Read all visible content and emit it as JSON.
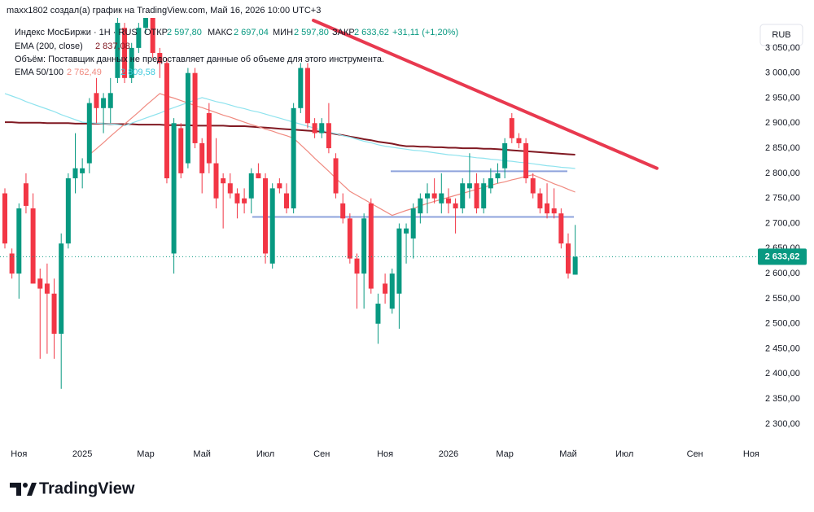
{
  "header": "maxx1802 создал(а) график на TradingView.com, Май 16, 2026 10:00 UTC+3",
  "legend": {
    "symbol": "Индекс МосБиржи · 1Н · RUS",
    "open_label": "ОТКР",
    "open": "2 597,80",
    "high_label": "МАКС",
    "high": "2 697,04",
    "low_label": "МИН",
    "low": "2 597,80",
    "close_label": "ЗАКР",
    "close": "2 633,62",
    "change": "+31,11 (+1,20%)",
    "ema200_label": "EMA (200, close)",
    "ema200": "2 837,08",
    "volume": "Объём: Поставщик данных не предоставляет данные об объеме для этого инструмента.",
    "ema_pair_label": "EMA 50/100",
    "ema50": "2 762,49",
    "ema100": "2 809,58"
  },
  "currency": "RUB",
  "logo": "TradingView",
  "chart_data": {
    "type": "candlestick",
    "categories": [
      null,
      null,
      "Ноя",
      null,
      null,
      null,
      null,
      null,
      null,
      null,
      null,
      "2025",
      null,
      null,
      null,
      null,
      null,
      null,
      null,
      null,
      "Мар",
      null,
      null,
      null,
      null,
      null,
      null,
      null,
      "Май",
      null,
      null,
      null,
      null,
      null,
      null,
      null,
      null,
      "Июл",
      null,
      null,
      null,
      null,
      null,
      null,
      null,
      "Сен",
      null,
      null,
      null,
      null,
      null,
      null,
      null,
      null,
      "Ноя",
      null,
      null,
      null,
      null,
      null,
      null,
      null,
      null,
      "2026",
      null,
      null,
      null,
      null,
      null,
      null,
      null,
      "Мар",
      null,
      null,
      null,
      null,
      null,
      null,
      null,
      null,
      "Май",
      null,
      null,
      null,
      null,
      null,
      null,
      null,
      "Июл",
      null,
      null,
      null,
      null,
      null,
      null,
      null,
      null,
      null,
      "Сен",
      null,
      null,
      null,
      null,
      null,
      null,
      null,
      "Ноя"
    ],
    "open": [
      2760,
      2640,
      2600,
      2780,
      2730,
      2590,
      2580,
      2560,
      2480,
      2660,
      2790,
      2800,
      2820,
      2960,
      2930,
      2930,
      2990,
      3090,
      2990,
      3050,
      3090,
      3110,
      3040,
      3020,
      2640,
      2890,
      2820,
      3000,
      2860,
      2920,
      2820,
      2790,
      2780,
      2760,
      2750,
      2750,
      2800,
      2790,
      2620,
      2780,
      2760,
      2730,
      2930,
      3010,
      2900,
      2880,
      2900,
      2830,
      2740,
      2710,
      2630,
      2600,
      2740,
      2500,
      2580,
      2530,
      2560,
      2680,
      2670,
      2720,
      2750,
      2760,
      2740,
      2750,
      2740,
      2730,
      2770,
      2780,
      2730,
      2770,
      2790,
      2810,
      2910,
      2870,
      2860,
      2790,
      2760,
      2740,
      2730,
      2720,
      2660,
      2597.8,
      null,
      null,
      null,
      null,
      null,
      null,
      null,
      null,
      null,
      null,
      null,
      null,
      null,
      null,
      null,
      null,
      null,
      null,
      null,
      null,
      null,
      null,
      null,
      null,
      null
    ],
    "high": [
      2770,
      2650,
      2740,
      2800,
      2760,
      2610,
      2620,
      2590,
      2680,
      2800,
      2880,
      2830,
      2950,
      2990,
      2960,
      2990,
      3110,
      3100,
      3060,
      3100,
      3120,
      3130,
      3050,
      3030,
      2910,
      2900,
      3010,
      3010,
      2870,
      2940,
      2870,
      2800,
      2800,
      2770,
      2770,
      2810,
      2820,
      2800,
      2780,
      2790,
      2780,
      2940,
      3020,
      3020,
      2910,
      2910,
      2940,
      2840,
      2760,
      2720,
      2640,
      2720,
      2750,
      2560,
      2600,
      2610,
      2700,
      2700,
      2740,
      2760,
      2780,
      2790,
      2800,
      2770,
      2750,
      2790,
      2840,
      2800,
      2790,
      2810,
      2820,
      2870,
      2920,
      2880,
      2870,
      2800,
      2770,
      2780,
      2770,
      2730,
      2680,
      2697.04,
      null,
      null,
      null,
      null,
      null,
      null,
      null,
      null,
      null,
      null,
      null,
      null,
      null,
      null,
      null,
      null,
      null,
      null,
      null,
      null,
      null,
      null,
      null,
      null,
      null
    ],
    "low": [
      2650,
      2590,
      2550,
      2720,
      2580,
      2430,
      2440,
      2430,
      2370,
      2650,
      2760,
      2770,
      2800,
      2900,
      2880,
      2900,
      2980,
      2980,
      2980,
      3040,
      3080,
      3030,
      2990,
      2780,
      2600,
      2790,
      2810,
      2850,
      2760,
      2800,
      2730,
      2690,
      2750,
      2710,
      2720,
      2720,
      2790,
      2620,
      2610,
      2760,
      2720,
      2720,
      2920,
      2890,
      2870,
      2870,
      2840,
      2750,
      2700,
      2620,
      2530,
      2530,
      2560,
      2460,
      2540,
      2520,
      2490,
      2620,
      2630,
      2700,
      2720,
      2740,
      2720,
      2720,
      2680,
      2720,
      2750,
      2720,
      2720,
      2760,
      2780,
      2790,
      2860,
      2850,
      2780,
      2750,
      2720,
      2710,
      2710,
      2650,
      2590,
      2597.8,
      null,
      null,
      null,
      null,
      null,
      null,
      null,
      null,
      null,
      null,
      null,
      null,
      null,
      null,
      null,
      null,
      null,
      null,
      null,
      null,
      null,
      null,
      null,
      null,
      null
    ],
    "close": [
      2660,
      2600,
      2730,
      2735,
      2580,
      2570,
      2560,
      2480,
      2660,
      2790,
      2810,
      2810,
      2940,
      2930,
      2950,
      2960,
      3100,
      2990,
      3050,
      3090,
      3110,
      3040,
      3020,
      2790,
      2900,
      2800,
      3000,
      2860,
      2800,
      2820,
      2750,
      2780,
      2760,
      2740,
      2740,
      2800,
      2790,
      2640,
      2770,
      2770,
      2730,
      2930,
      3010,
      2900,
      2880,
      2900,
      2850,
      2760,
      2710,
      2630,
      2600,
      2710,
      2570,
      2540,
      2560,
      2600,
      2690,
      2690,
      2730,
      2750,
      2760,
      2750,
      2760,
      2740,
      2730,
      2780,
      2780,
      2730,
      2780,
      2790,
      2800,
      2860,
      2870,
      2860,
      2790,
      2760,
      2730,
      2720,
      2720,
      2660,
      2600,
      2633.62,
      null,
      null,
      null,
      null,
      null,
      null,
      null,
      null,
      null,
      null,
      null,
      null,
      null,
      null,
      null,
      null,
      null,
      null,
      null,
      null,
      null,
      null,
      null,
      null,
      null
    ],
    "up_color": "#089981",
    "down_color": "#f23645",
    "series": [
      {
        "name": "EMA 200",
        "color": "#801922",
        "values": [
          2902,
          2902,
          2901,
          2901,
          2901,
          2901,
          2900,
          2900,
          2900,
          2900,
          2899,
          2899,
          2899,
          2899,
          2899,
          2898,
          2898,
          2898,
          2898,
          2897,
          2897,
          2897,
          2897,
          2896,
          2896,
          2896,
          2896,
          2895,
          2895,
          2895,
          2895,
          2895,
          2894,
          2894,
          2894,
          2893,
          2892,
          2891,
          2890,
          2889,
          2888,
          2887,
          2886,
          2885,
          2884,
          2883,
          2881,
          2878,
          2876,
          2873,
          2871,
          2868,
          2866,
          2863,
          2861,
          2859,
          2856,
          2854,
          2854,
          2853,
          2853,
          2852,
          2852,
          2851,
          2851,
          2850,
          2850,
          2850,
          2849,
          2849,
          2848,
          2847,
          2846,
          2845,
          2844,
          2843,
          2842,
          2841,
          2840,
          2839,
          2838,
          2837.08,
          null,
          null,
          null,
          null,
          null,
          null,
          null,
          null,
          null,
          null,
          null,
          null,
          null,
          null,
          null,
          null,
          null,
          null,
          null,
          null,
          null,
          null,
          null,
          null,
          null
        ]
      },
      {
        "name": "EMA 100",
        "color": "#8fe3ee",
        "values": [
          2959,
          2954,
          2949,
          2943,
          2938,
          2933,
          2928,
          2923,
          2917,
          2912,
          2907,
          2902,
          2901,
          2900,
          2899,
          2898,
          2897,
          2895,
          2900,
          2905,
          2910,
          2915,
          2920,
          2926,
          2931,
          2936,
          2941,
          2946,
          2951,
          2947,
          2943,
          2940,
          2936,
          2932,
          2929,
          2925,
          2922,
          2918,
          2914,
          2910,
          2906,
          2902,
          2898,
          2894,
          2890,
          2886,
          2882,
          2879,
          2875,
          2872,
          2868,
          2864,
          2861,
          2857,
          2854,
          2852,
          2850,
          2848,
          2846,
          2845,
          2843,
          2841,
          2839,
          2837,
          2836,
          2834,
          2833,
          2831,
          2830,
          2828,
          2827,
          2825,
          2824,
          2822,
          2821,
          2819,
          2817,
          2815,
          2814,
          2812,
          2811,
          2809.58,
          null,
          null,
          null,
          null,
          null,
          null,
          null,
          null,
          null,
          null,
          null,
          null,
          null,
          null,
          null,
          null,
          null,
          null,
          null,
          null,
          null,
          null,
          null,
          null,
          null
        ]
      },
      {
        "name": "EMA 50",
        "color": "#f08a80",
        "values": [
          null,
          null,
          null,
          null,
          null,
          null,
          null,
          null,
          null,
          null,
          null,
          null,
          2837,
          2849,
          2861,
          2874,
          2886,
          2898,
          2910,
          2922,
          2935,
          2947,
          2959,
          2954,
          2950,
          2945,
          2940,
          2935,
          2931,
          2926,
          2921,
          2916,
          2912,
          2907,
          2902,
          2897,
          2893,
          2888,
          2884,
          2879,
          2875,
          2870,
          2857,
          2844,
          2830,
          2817,
          2804,
          2790,
          2777,
          2764,
          2756,
          2748,
          2740,
          2732,
          2724,
          2716,
          2721,
          2726,
          2730,
          2735,
          2740,
          2744,
          2748,
          2752,
          2756,
          2760,
          2764,
          2768,
          2772,
          2776,
          2780,
          2783,
          2787,
          2790,
          2794,
          2797,
          2791,
          2785,
          2779,
          2774,
          2768,
          2762.49,
          null,
          null,
          null,
          null,
          null,
          null,
          null,
          null,
          null,
          null,
          null,
          null,
          null,
          null,
          null,
          null,
          null,
          null,
          null,
          null,
          null,
          null,
          null,
          null,
          null
        ]
      }
    ],
    "levels": [
      2804,
      2713
    ],
    "level_color": "#8ea3dc",
    "trend_line": [
      3105,
      2810
    ],
    "trend_color": "#e8394f",
    "last_price_label": "2 633,62",
    "ylim": [
      2269,
      3105
    ],
    "yticks": [
      {
        "value": 2300,
        "label": "2 300,00"
      },
      {
        "value": 2350,
        "label": "2 350,00"
      },
      {
        "value": 2400,
        "label": "2 400,00"
      },
      {
        "value": 2450,
        "label": "2 450,00"
      },
      {
        "value": 2500,
        "label": "2 500,00"
      },
      {
        "value": 2550,
        "label": "2 550,00"
      },
      {
        "value": 2600,
        "label": "2 600,00"
      },
      {
        "value": 2650,
        "label": "2 650,00"
      },
      {
        "value": 2700,
        "label": "2 700,00"
      },
      {
        "value": 2750,
        "label": "2 750,00"
      },
      {
        "value": 2800,
        "label": "2 800,00"
      },
      {
        "value": 2850,
        "label": "2 850,00"
      },
      {
        "value": 2900,
        "label": "2 900,00"
      },
      {
        "value": 2950,
        "label": "2 950,00"
      },
      {
        "value": 3000,
        "label": "3 000,00"
      },
      {
        "value": 3050,
        "label": "3 050,00"
      }
    ],
    "grid": false
  }
}
